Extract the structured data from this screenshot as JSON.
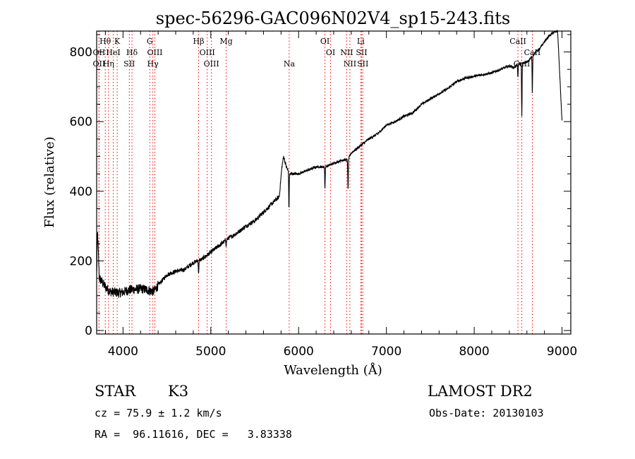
{
  "chart_data": {
    "type": "line",
    "title": "spec-56296-GAC096N02V4_sp15-243.fits",
    "xlabel": "Wavelength (Å)",
    "ylabel": "Flux (relative)",
    "xlim": [
      3700,
      9100
    ],
    "ylim": [
      -10,
      860
    ],
    "x_ticks": [
      4000,
      5000,
      6000,
      7000,
      8000,
      9000
    ],
    "y_ticks": [
      0,
      200,
      400,
      600,
      800
    ],
    "grid": false,
    "series": [
      {
        "x": [
          3700,
          3710,
          3730,
          3760,
          3800,
          3850,
          3900,
          3950,
          4000,
          4050,
          4100,
          4150,
          4200,
          4250,
          4300,
          4350,
          4400,
          4500,
          4600,
          4700,
          4800,
          4900,
          5000,
          5100,
          5200,
          5300,
          5400,
          5500,
          5600,
          5700,
          5780,
          5810,
          5830,
          5860,
          5900,
          5950,
          6000,
          6100,
          6200,
          6300,
          6400,
          6500,
          6560,
          6600,
          6700,
          6800,
          6900,
          7000,
          7100,
          7200,
          7300,
          7400,
          7500,
          7600,
          7700,
          7800,
          7900,
          8000,
          8100,
          8200,
          8300,
          8400,
          8450,
          8500,
          8600,
          8700,
          8750,
          8800,
          8850,
          8900,
          8950,
          9000
        ],
        "y": [
          160,
          285,
          150,
          140,
          125,
          112,
          110,
          108,
          110,
          115,
          118,
          118,
          120,
          118,
          115,
          112,
          130,
          160,
          170,
          175,
          195,
          205,
          225,
          245,
          265,
          280,
          300,
          315,
          340,
          365,
          385,
          470,
          500,
          470,
          450,
          450,
          450,
          460,
          470,
          470,
          480,
          490,
          490,
          510,
          530,
          550,
          565,
          590,
          600,
          615,
          625,
          650,
          665,
          680,
          695,
          715,
          725,
          730,
          735,
          740,
          750,
          760,
          755,
          765,
          770,
          800,
          810,
          830,
          845,
          855,
          860,
          600
        ]
      }
    ],
    "absorption_features": [
      {
        "x": 4861,
        "depth": 40
      },
      {
        "x": 5175,
        "depth": 15
      },
      {
        "x": 5890,
        "depth": 105
      },
      {
        "x": 6300,
        "depth": 60
      },
      {
        "x": 6563,
        "depth": 90
      },
      {
        "x": 8498,
        "depth": 40
      },
      {
        "x": 8542,
        "depth": 150
      },
      {
        "x": 8662,
        "depth": 110
      }
    ],
    "line_markers": [
      {
        "label": "Hθ",
        "x": 3798,
        "color": "#000000",
        "row": 0
      },
      {
        "label": "K",
        "x": 3934,
        "color": "#000000",
        "row": 0
      },
      {
        "label": "OII",
        "x": 3727,
        "color": "#000000",
        "row": 1
      },
      {
        "label": "HeI",
        "x": 3889,
        "color": "#000000",
        "row": 1
      },
      {
        "label": "Hδ",
        "x": 4102,
        "color": "#000000",
        "row": 1
      },
      {
        "label": "OII",
        "x": 3727,
        "color": "#000000",
        "row": 2
      },
      {
        "label": "Hη",
        "x": 3835,
        "color": "#000000",
        "row": 2
      },
      {
        "label": "SII",
        "x": 4072,
        "color": "#000000",
        "row": 2
      },
      {
        "label": "G",
        "x": 4305,
        "color": "#000000",
        "row": 0
      },
      {
        "label": "OIII",
        "x": 4363,
        "color": "#000000",
        "row": 1
      },
      {
        "label": "Hγ",
        "x": 4340,
        "color": "#000000",
        "row": 2
      },
      {
        "label": "Hβ",
        "x": 4861,
        "color": "#000000",
        "row": 0
      },
      {
        "label": "OIII",
        "x": 4959,
        "color": "#000000",
        "row": 1
      },
      {
        "label": "OIII",
        "x": 5007,
        "color": "#000000",
        "row": 2
      },
      {
        "label": "Mg",
        "x": 5175,
        "color": "#000000",
        "row": 0
      },
      {
        "label": "Na",
        "x": 5893,
        "color": "#000000",
        "row": 2
      },
      {
        "label": "OI",
        "x": 6300,
        "color": "#000000",
        "row": 0
      },
      {
        "label": "OI",
        "x": 6364,
        "color": "#000000",
        "row": 1
      },
      {
        "label": "Li",
        "x": 6708,
        "color": "#000000",
        "row": 0
      },
      {
        "label": "NII",
        "x": 6548,
        "color": "#000000",
        "row": 1
      },
      {
        "label": "SII",
        "x": 6717,
        "color": "#000000",
        "row": 1
      },
      {
        "label": "NII",
        "x": 6584,
        "color": "#000000",
        "row": 2
      },
      {
        "label": "SII",
        "x": 6731,
        "color": "#000000",
        "row": 2
      },
      {
        "label": "CaII",
        "x": 8498,
        "color": "#000000",
        "row": 0
      },
      {
        "label": "CaII",
        "x": 8662,
        "color": "#000000",
        "row": 1
      },
      {
        "label": "CaII",
        "x": 8542,
        "color": "#000000",
        "row": 2
      }
    ],
    "marker_colors": {
      "emission": "#ff0000",
      "absorption": "#000000"
    },
    "line_color": "#000000"
  },
  "info": {
    "object_class": "STAR",
    "subclass": "K3",
    "survey": "LAMOST DR2",
    "redshift": "cz = 75.9 ± 1.2 km/s",
    "obs_date": "Obs-Date: 20130103",
    "coords": "RA =  96.11616, DEC =   3.83338"
  }
}
